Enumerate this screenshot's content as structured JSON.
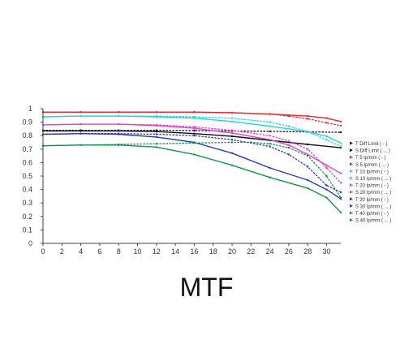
{
  "caption": "MTF",
  "chart_data": {
    "type": "line",
    "title": "",
    "xlabel": "",
    "ylabel": "",
    "xlim": [
      0,
      31.5
    ],
    "ylim": [
      0,
      1
    ],
    "x_ticks": [
      "0",
      "2",
      "4",
      "6",
      "8",
      "10",
      "12",
      "14",
      "16",
      "18",
      "20",
      "22",
      "24",
      "26",
      "28",
      "30"
    ],
    "y_ticks": [
      "0",
      "0.1",
      "0.2",
      "0.3",
      "0.4",
      "0.5",
      "0.6",
      "0.7",
      "0.8",
      "0.9",
      "1"
    ],
    "grid": false,
    "legend_position": "right",
    "series": [
      {
        "name": "T Diff Limit ( - )",
        "color": "#111111",
        "dash": "solid",
        "x": [
          0,
          4,
          8,
          12,
          16,
          20,
          24,
          28,
          31.5
        ],
        "y": [
          0.835,
          0.835,
          0.835,
          0.83,
          0.815,
          0.795,
          0.765,
          0.735,
          0.71
        ]
      },
      {
        "name": "S Diff Limit ( ... )",
        "color": "#111111",
        "dash": "dotted",
        "x": [
          0,
          4,
          8,
          12,
          16,
          20,
          24,
          28,
          31.5
        ],
        "y": [
          0.84,
          0.84,
          0.84,
          0.84,
          0.838,
          0.835,
          0.832,
          0.828,
          0.825
        ]
      },
      {
        "name": "T 5 lp/mm ( - )",
        "color": "#e8262b",
        "dash": "solid",
        "x": [
          0,
          4,
          8,
          12,
          16,
          20,
          24,
          28,
          30,
          31.5
        ],
        "y": [
          0.975,
          0.975,
          0.975,
          0.975,
          0.975,
          0.97,
          0.96,
          0.945,
          0.93,
          0.905
        ]
      },
      {
        "name": "S 5 lp/mm ( ... )",
        "color": "#e8262b",
        "dash": "dotted",
        "x": [
          0,
          4,
          8,
          12,
          16,
          20,
          24,
          26,
          28,
          30,
          31.5
        ],
        "y": [
          0.975,
          0.975,
          0.975,
          0.975,
          0.975,
          0.97,
          0.96,
          0.945,
          0.925,
          0.895,
          0.875
        ]
      },
      {
        "name": "T 10 lp/mm ( - )",
        "color": "#22d3de",
        "dash": "solid",
        "x": [
          0,
          4,
          8,
          12,
          16,
          20,
          24,
          28,
          30,
          31.5
        ],
        "y": [
          0.94,
          0.945,
          0.945,
          0.94,
          0.93,
          0.905,
          0.87,
          0.83,
          0.795,
          0.745
        ]
      },
      {
        "name": "S 10 lp/mm ( ... )",
        "color": "#22d3de",
        "dash": "dotted",
        "x": [
          0,
          4,
          8,
          12,
          16,
          20,
          24,
          26,
          28,
          30,
          31.5
        ],
        "y": [
          0.94,
          0.945,
          0.945,
          0.945,
          0.94,
          0.93,
          0.9,
          0.87,
          0.83,
          0.77,
          0.72
        ]
      },
      {
        "name": "T 20 lp/mm ( - )",
        "color": "#e43fd0",
        "dash": "solid",
        "x": [
          0,
          4,
          8,
          12,
          16,
          20,
          24,
          26,
          28,
          30,
          31.5
        ],
        "y": [
          0.88,
          0.885,
          0.885,
          0.875,
          0.855,
          0.82,
          0.77,
          0.73,
          0.66,
          0.58,
          0.52
        ]
      },
      {
        "name": "S 20 lp/mm ( ... )",
        "color": "#e43fd0",
        "dash": "dotted",
        "x": [
          0,
          4,
          8,
          12,
          16,
          20,
          24,
          26,
          28,
          30,
          31.5
        ],
        "y": [
          0.88,
          0.885,
          0.885,
          0.88,
          0.865,
          0.84,
          0.8,
          0.76,
          0.7,
          0.56,
          0.45
        ]
      },
      {
        "name": "T 30 lp/mm ( - )",
        "color": "#2b37b8",
        "dash": "solid",
        "x": [
          0,
          4,
          8,
          12,
          16,
          20,
          24,
          28,
          30,
          31.5
        ],
        "y": [
          0.81,
          0.815,
          0.81,
          0.79,
          0.75,
          0.67,
          0.56,
          0.47,
          0.4,
          0.33
        ]
      },
      {
        "name": "S 30 lp/mm ( ... )",
        "color": "#2b37b8",
        "dash": "dotted",
        "x": [
          0,
          4,
          8,
          12,
          16,
          20,
          24,
          26,
          28,
          30,
          31.5
        ],
        "y": [
          0.81,
          0.815,
          0.815,
          0.81,
          0.8,
          0.77,
          0.72,
          0.66,
          0.57,
          0.43,
          0.38
        ]
      },
      {
        "name": "T 40 lp/mm ( - )",
        "color": "#12934b",
        "dash": "solid",
        "x": [
          0,
          4,
          8,
          12,
          16,
          20,
          24,
          28,
          30,
          31.5
        ],
        "y": [
          0.725,
          0.73,
          0.73,
          0.715,
          0.66,
          0.58,
          0.49,
          0.41,
          0.34,
          0.23
        ]
      },
      {
        "name": "S 40 lp/mm ( ... )",
        "color": "#12934b",
        "dash": "dotted",
        "x": [
          0,
          4,
          8,
          12,
          16,
          20,
          22,
          24,
          26,
          28,
          30,
          31.5
        ],
        "y": [
          0.725,
          0.73,
          0.735,
          0.74,
          0.745,
          0.75,
          0.75,
          0.74,
          0.71,
          0.65,
          0.5,
          0.34
        ]
      }
    ]
  }
}
